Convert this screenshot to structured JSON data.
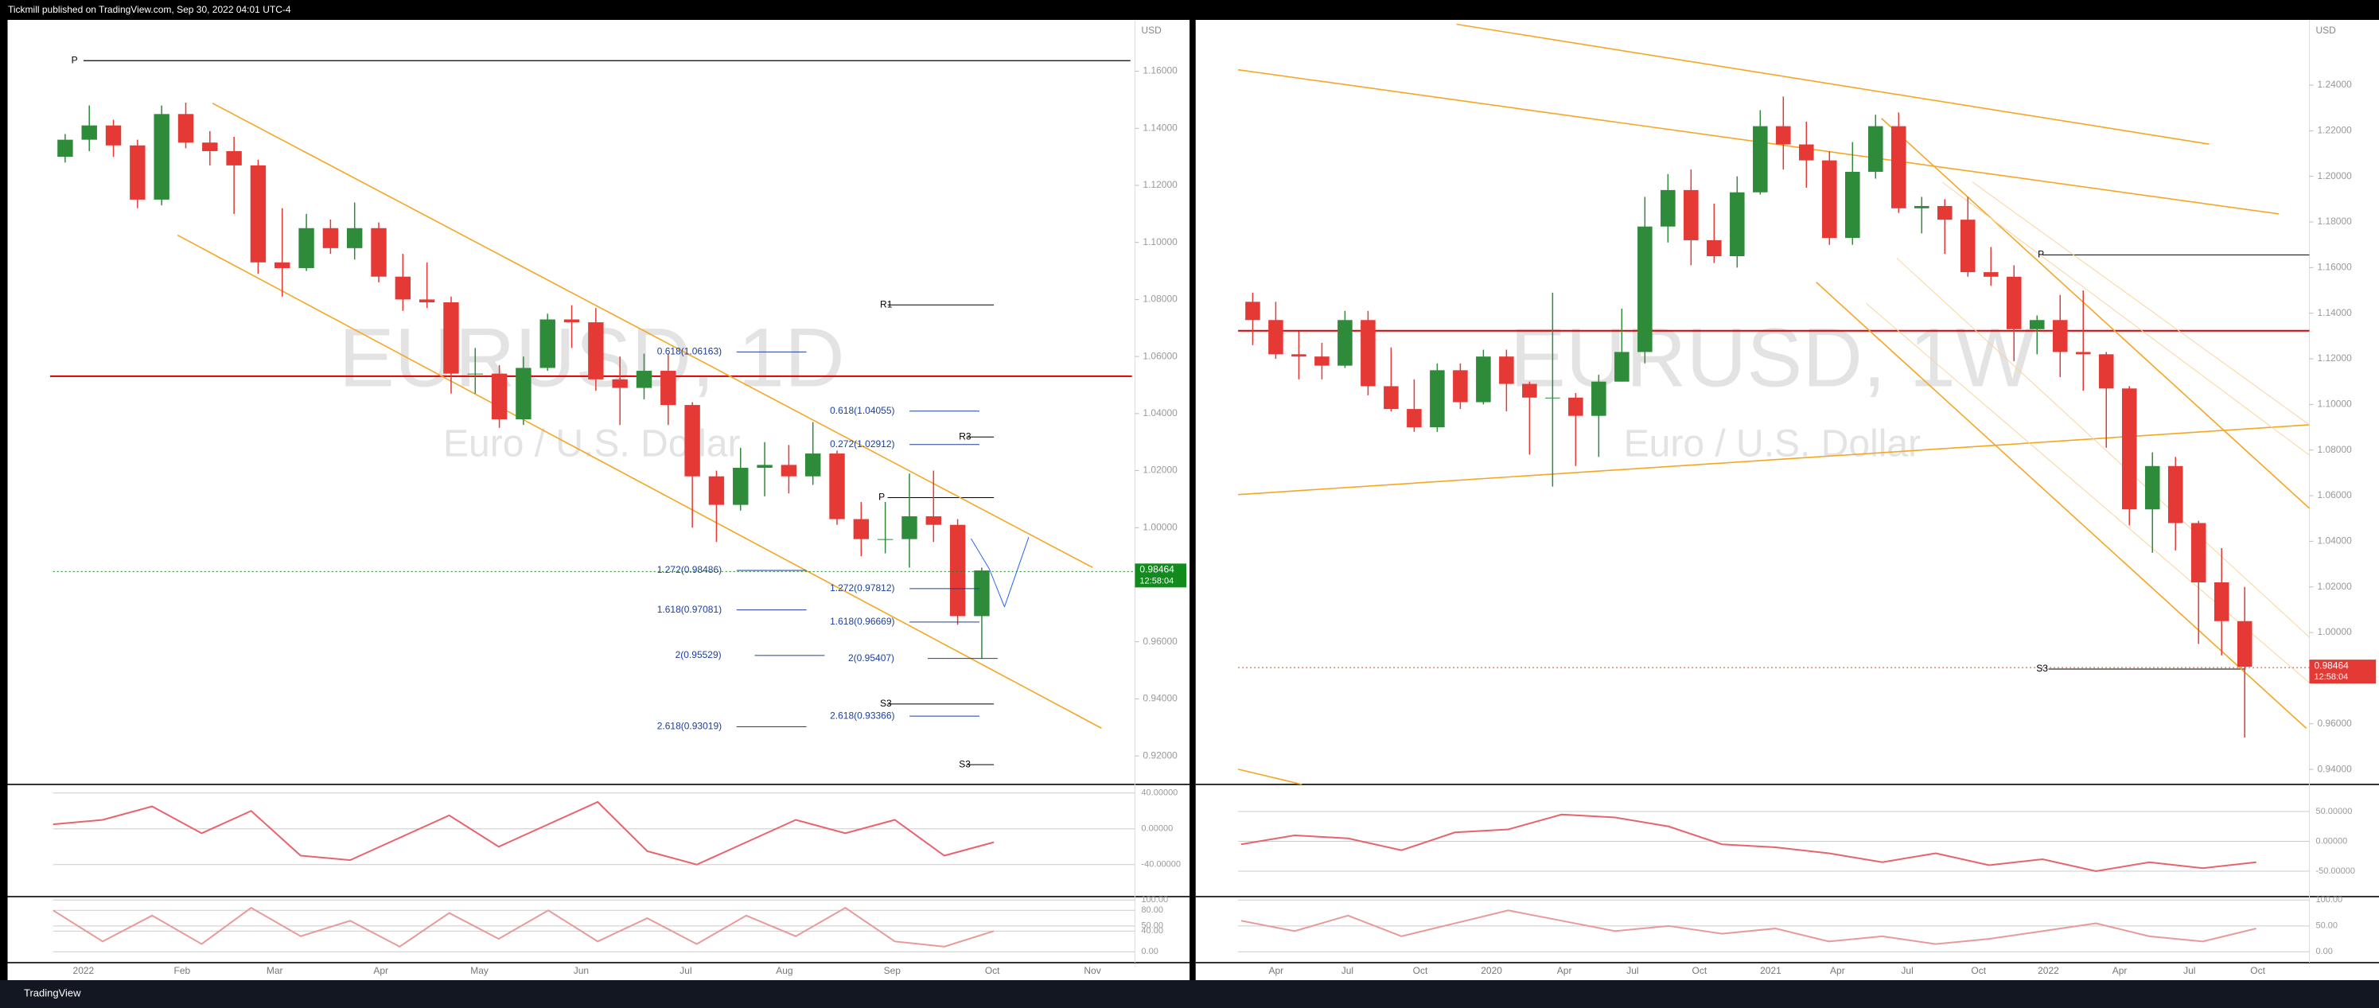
{
  "header": {
    "text": "Tickmill published on TradingView.com, Sep 30, 2022 04:01 UTC-4"
  },
  "footer": {
    "brand": "TradingView"
  },
  "chart_data": [
    {
      "type": "candlestick",
      "title": "EURUSD, 1D",
      "subtitle": "Euro / U.S. Dollar",
      "currency": "USD",
      "ylim": [
        0.91,
        1.178
      ],
      "yticks": [
        {
          "value": 0.92,
          "label": "0.92000"
        },
        {
          "value": 0.94,
          "label": "0.94000"
        },
        {
          "value": 0.96,
          "label": "0.96000"
        },
        {
          "value": 0.98,
          "label": "0.98000"
        },
        {
          "value": 1.0,
          "label": "1.00000"
        },
        {
          "value": 1.02,
          "label": "1.02000"
        },
        {
          "value": 1.04,
          "label": "1.04000"
        },
        {
          "value": 1.06,
          "label": "1.06000"
        },
        {
          "value": 1.08,
          "label": "1.08000"
        },
        {
          "value": 1.1,
          "label": "1.10000"
        },
        {
          "value": 1.12,
          "label": "1.12000"
        },
        {
          "value": 1.14,
          "label": "1.14000"
        },
        {
          "value": 1.16,
          "label": "1.16000"
        }
      ],
      "up_color": "#2e8b3a",
      "down_color": "#e53935",
      "ohlc": [
        [
          1.13,
          1.138,
          1.128,
          1.136
        ],
        [
          1.136,
          1.148,
          1.132,
          1.141
        ],
        [
          1.141,
          1.143,
          1.13,
          1.134
        ],
        [
          1.134,
          1.136,
          1.112,
          1.115
        ],
        [
          1.115,
          1.148,
          1.113,
          1.145
        ],
        [
          1.145,
          1.149,
          1.133,
          1.135
        ],
        [
          1.135,
          1.139,
          1.127,
          1.132
        ],
        [
          1.132,
          1.137,
          1.11,
          1.127
        ],
        [
          1.127,
          1.129,
          1.089,
          1.093
        ],
        [
          1.093,
          1.112,
          1.081,
          1.091
        ],
        [
          1.091,
          1.11,
          1.09,
          1.105
        ],
        [
          1.105,
          1.108,
          1.096,
          1.098
        ],
        [
          1.098,
          1.114,
          1.094,
          1.105
        ],
        [
          1.105,
          1.107,
          1.086,
          1.088
        ],
        [
          1.088,
          1.096,
          1.076,
          1.08
        ],
        [
          1.08,
          1.093,
          1.077,
          1.079
        ],
        [
          1.079,
          1.081,
          1.047,
          1.054
        ],
        [
          1.054,
          1.063,
          1.047,
          1.054
        ],
        [
          1.054,
          1.057,
          1.035,
          1.038
        ],
        [
          1.038,
          1.06,
          1.036,
          1.056
        ],
        [
          1.056,
          1.075,
          1.055,
          1.073
        ],
        [
          1.073,
          1.078,
          1.063,
          1.072
        ],
        [
          1.072,
          1.077,
          1.048,
          1.052
        ],
        [
          1.052,
          1.06,
          1.036,
          1.049
        ],
        [
          1.049,
          1.061,
          1.045,
          1.055
        ],
        [
          1.055,
          1.061,
          1.036,
          1.043
        ],
        [
          1.043,
          1.044,
          1.0,
          1.018
        ],
        [
          1.018,
          1.02,
          0.995,
          1.008
        ],
        [
          1.008,
          1.028,
          1.006,
          1.021
        ],
        [
          1.021,
          1.03,
          1.011,
          1.022
        ],
        [
          1.022,
          1.029,
          1.012,
          1.018
        ],
        [
          1.018,
          1.037,
          1.015,
          1.026
        ],
        [
          1.026,
          1.027,
          1.001,
          1.003
        ],
        [
          1.003,
          1.009,
          0.99,
          0.996
        ],
        [
          0.996,
          1.009,
          0.991,
          0.996
        ],
        [
          0.996,
          1.019,
          0.986,
          1.004
        ],
        [
          1.004,
          1.02,
          0.995,
          1.001
        ],
        [
          1.001,
          1.003,
          0.966,
          0.969
        ],
        [
          0.969,
          0.986,
          0.954,
          0.985
        ]
      ],
      "last_price": 0.98464,
      "countdown": "12:58:04",
      "last_color": "#138a1d",
      "x_labels": [
        "2022",
        "Feb",
        "Mar",
        "Apr",
        "May",
        "Jun",
        "Jul",
        "Aug",
        "Sep",
        "Oct",
        "Nov"
      ],
      "annotations": [
        "0.618(1.06163)",
        "0.618(1.04055)",
        "0.272(1.02912)",
        "1.272(0.98486)",
        "1.272(0.97812)",
        "1.618(0.97081)",
        "1.618(0.96669)",
        "2(0.95529)",
        "2(0.95407)",
        "2.618(0.93019)",
        "2.618(0.93366)"
      ],
      "pivot_labels": [
        "P",
        "R1",
        "R3",
        "P",
        "S3",
        "S3"
      ],
      "oscillator": {
        "ylim": [
          -74,
          46
        ],
        "yticks": [
          {
            "value": 40,
            "label": "40.00000"
          },
          {
            "value": 0,
            "label": "0.00000"
          },
          {
            "value": -40,
            "label": "-40.00000"
          }
        ],
        "color": "#e8636b",
        "values": [
          5,
          10,
          25,
          -5,
          20,
          -30,
          -35,
          -10,
          15,
          -20,
          5,
          30,
          -25,
          -40,
          -15,
          10,
          -5,
          10,
          -30,
          -15
        ]
      },
      "stochastic": {
        "ylim": [
          -21,
          102
        ],
        "yticks": [
          {
            "value": 100,
            "label": "100.00"
          },
          {
            "value": 80,
            "label": "80.00"
          },
          {
            "value": 50,
            "label": "50.00"
          },
          {
            "value": 40,
            "label": "40.00"
          },
          {
            "value": 0,
            "label": "0.00"
          }
        ],
        "color": "#e89a9a",
        "values": [
          80,
          20,
          70,
          15,
          85,
          30,
          60,
          10,
          75,
          25,
          80,
          20,
          65,
          15,
          70,
          30,
          85,
          20,
          10,
          40
        ]
      }
    },
    {
      "type": "candlestick",
      "title": "EURUSD, 1W",
      "subtitle": "Euro / U.S. Dollar",
      "currency": "USD",
      "ylim": [
        0.9334,
        1.2686
      ],
      "yticks": [
        {
          "value": 0.94,
          "label": "0.94000"
        },
        {
          "value": 0.96,
          "label": "0.96000"
        },
        {
          "value": 0.98,
          "label": "0.98000"
        },
        {
          "value": 1.0,
          "label": "1.00000"
        },
        {
          "value": 1.02,
          "label": "1.02000"
        },
        {
          "value": 1.04,
          "label": "1.04000"
        },
        {
          "value": 1.06,
          "label": "1.06000"
        },
        {
          "value": 1.08,
          "label": "1.08000"
        },
        {
          "value": 1.1,
          "label": "1.10000"
        },
        {
          "value": 1.12,
          "label": "1.12000"
        },
        {
          "value": 1.14,
          "label": "1.14000"
        },
        {
          "value": 1.16,
          "label": "1.16000"
        },
        {
          "value": 1.18,
          "label": "1.18000"
        },
        {
          "value": 1.2,
          "label": "1.20000"
        },
        {
          "value": 1.22,
          "label": "1.22000"
        },
        {
          "value": 1.24,
          "label": "1.24000"
        }
      ],
      "up_color": "#2e8b3a",
      "down_color": "#e53935",
      "ohlc": [
        [
          1.145,
          1.149,
          1.126,
          1.137
        ],
        [
          1.137,
          1.145,
          1.12,
          1.122
        ],
        [
          1.122,
          1.132,
          1.111,
          1.121
        ],
        [
          1.121,
          1.127,
          1.111,
          1.117
        ],
        [
          1.117,
          1.141,
          1.116,
          1.137
        ],
        [
          1.137,
          1.141,
          1.104,
          1.108
        ],
        [
          1.108,
          1.125,
          1.097,
          1.098
        ],
        [
          1.098,
          1.111,
          1.088,
          1.09
        ],
        [
          1.09,
          1.118,
          1.088,
          1.115
        ],
        [
          1.115,
          1.118,
          1.098,
          1.101
        ],
        [
          1.101,
          1.124,
          1.1,
          1.121
        ],
        [
          1.121,
          1.124,
          1.097,
          1.109
        ],
        [
          1.109,
          1.11,
          1.078,
          1.103
        ],
        [
          1.103,
          1.149,
          1.064,
          1.103
        ],
        [
          1.103,
          1.105,
          1.073,
          1.095
        ],
        [
          1.095,
          1.113,
          1.077,
          1.11
        ],
        [
          1.11,
          1.142,
          1.11,
          1.123
        ],
        [
          1.123,
          1.191,
          1.118,
          1.178
        ],
        [
          1.178,
          1.201,
          1.171,
          1.194
        ],
        [
          1.194,
          1.203,
          1.161,
          1.172
        ],
        [
          1.172,
          1.188,
          1.162,
          1.165
        ],
        [
          1.165,
          1.2,
          1.16,
          1.193
        ],
        [
          1.193,
          1.229,
          1.192,
          1.222
        ],
        [
          1.222,
          1.235,
          1.203,
          1.214
        ],
        [
          1.214,
          1.224,
          1.195,
          1.207
        ],
        [
          1.207,
          1.211,
          1.17,
          1.173
        ],
        [
          1.173,
          1.215,
          1.17,
          1.202
        ],
        [
          1.202,
          1.227,
          1.199,
          1.222
        ],
        [
          1.222,
          1.228,
          1.184,
          1.186
        ],
        [
          1.186,
          1.191,
          1.175,
          1.187
        ],
        [
          1.187,
          1.19,
          1.166,
          1.181
        ],
        [
          1.181,
          1.191,
          1.156,
          1.158
        ],
        [
          1.158,
          1.169,
          1.152,
          1.156
        ],
        [
          1.156,
          1.161,
          1.119,
          1.133
        ],
        [
          1.133,
          1.139,
          1.122,
          1.137
        ],
        [
          1.137,
          1.148,
          1.112,
          1.123
        ],
        [
          1.123,
          1.15,
          1.106,
          1.122
        ],
        [
          1.122,
          1.123,
          1.081,
          1.107
        ],
        [
          1.107,
          1.108,
          1.047,
          1.054
        ],
        [
          1.054,
          1.079,
          1.035,
          1.073
        ],
        [
          1.073,
          1.077,
          1.036,
          1.048
        ],
        [
          1.048,
          1.049,
          0.995,
          1.022
        ],
        [
          1.022,
          1.037,
          0.99,
          1.005
        ],
        [
          1.005,
          1.02,
          0.954,
          0.985
        ]
      ],
      "last_price": 0.98464,
      "countdown": "12:58:04",
      "last_color": "#e53935",
      "x_labels": [
        "Apr",
        "Jul",
        "Oct",
        "2020",
        "Apr",
        "Jul",
        "Oct",
        "2021",
        "Apr",
        "Jul",
        "Oct",
        "2022",
        "Apr",
        "Jul",
        "Oct"
      ],
      "pivot_labels": [
        "P",
        "S3"
      ],
      "oscillator": {
        "ylim": [
          -90,
          90
        ],
        "yticks": [
          {
            "value": 50,
            "label": "50.00000"
          },
          {
            "value": 0,
            "label": "0.00000"
          },
          {
            "value": -50,
            "label": "-50.00000"
          }
        ],
        "color": "#e8636b",
        "values": [
          -5,
          10,
          5,
          -15,
          15,
          20,
          45,
          40,
          25,
          -5,
          -10,
          -20,
          -35,
          -20,
          -40,
          -30,
          -50,
          -35,
          -45,
          -35
        ]
      },
      "stochastic": {
        "ylim": [
          -21,
          102
        ],
        "yticks": [
          {
            "value": 100,
            "label": "100.00"
          },
          {
            "value": 50,
            "label": "50.00"
          },
          {
            "value": 0,
            "label": "0.00"
          }
        ],
        "color": "#e89a9a",
        "values": [
          60,
          40,
          70,
          30,
          55,
          80,
          60,
          40,
          50,
          35,
          45,
          20,
          30,
          15,
          25,
          40,
          55,
          30,
          20,
          45
        ]
      }
    }
  ]
}
